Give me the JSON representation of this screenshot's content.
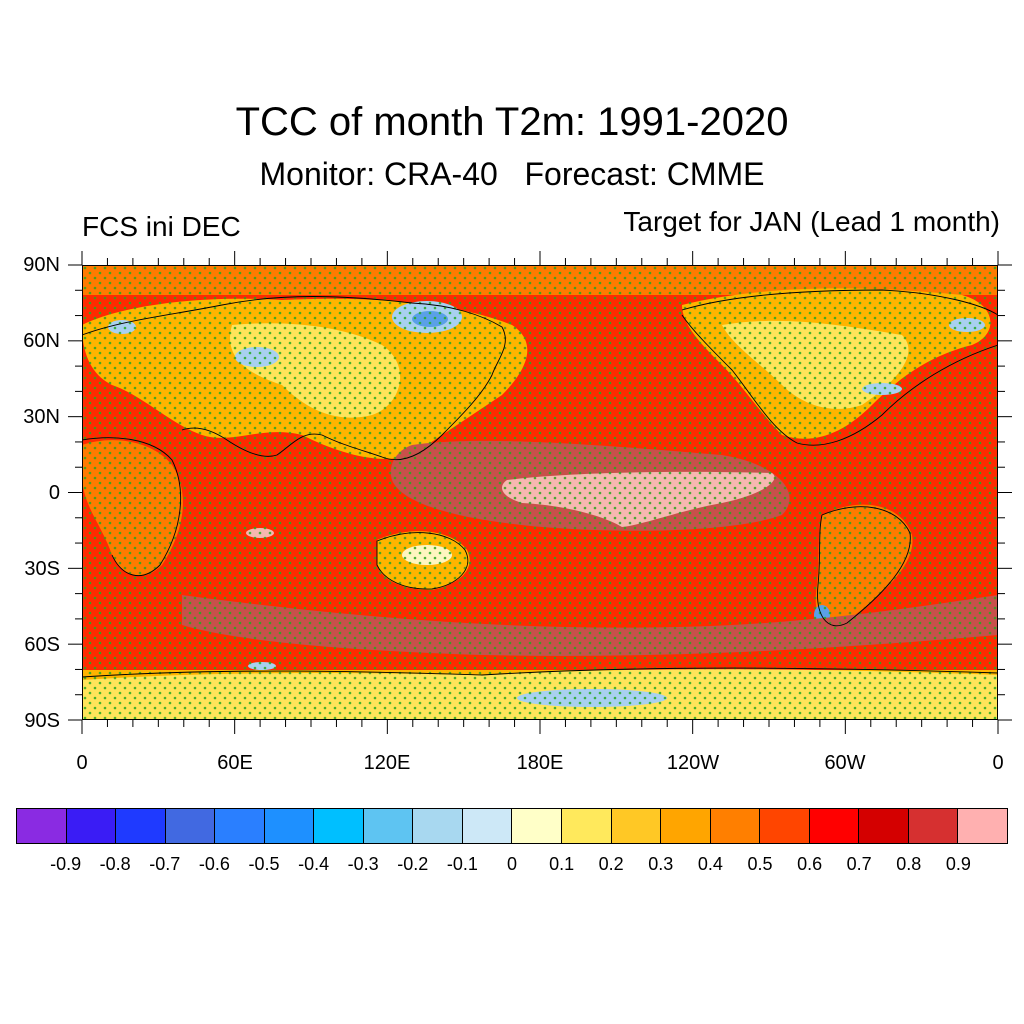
{
  "title": "TCC of month T2m: 1991-2020",
  "subtitle": "Monitor: CRA-40   Forecast: CMME",
  "left_label": "FCS ini DEC",
  "right_label": "Target for JAN (Lead 1 month)",
  "lat_labels": [
    "90N",
    "60N",
    "30N",
    "0",
    "30S",
    "60S",
    "90S"
  ],
  "lon_labels": [
    "0",
    "60E",
    "120E",
    "180E",
    "120W",
    "60W",
    "0"
  ],
  "colorbar": {
    "colors": [
      "#8a2be2",
      "#3a1cf5",
      "#1f3aff",
      "#4169e1",
      "#2a7fff",
      "#1e90ff",
      "#00bfff",
      "#5ec4f2",
      "#a8d8f0",
      "#cde8f7",
      "#ffffc8",
      "#ffe95c",
      "#ffc825",
      "#ffa500",
      "#ff7f00",
      "#ff4500",
      "#ff0000",
      "#d40000",
      "#d63030",
      "#ffb0b0"
    ],
    "labels": [
      "-0.9",
      "-0.8",
      "-0.7",
      "-0.6",
      "-0.5",
      "-0.4",
      "-0.3",
      "-0.2",
      "-0.1",
      "0",
      "0.1",
      "0.2",
      "0.3",
      "0.4",
      "0.5",
      "0.6",
      "0.7",
      "0.8",
      "0.9"
    ]
  },
  "map_colors": {
    "ocean_base": "#ff2a00",
    "high": "#c8504a",
    "peak": "#f7b7b0",
    "mid": "#ff7a00",
    "low": "#ffb400",
    "weak": "#ffe45a",
    "pale": "#fff5c0",
    "negative": "#a8d0f0",
    "negative_strong": "#5aa0e8",
    "stipple": "#22aa22",
    "coast": "#000000"
  }
}
